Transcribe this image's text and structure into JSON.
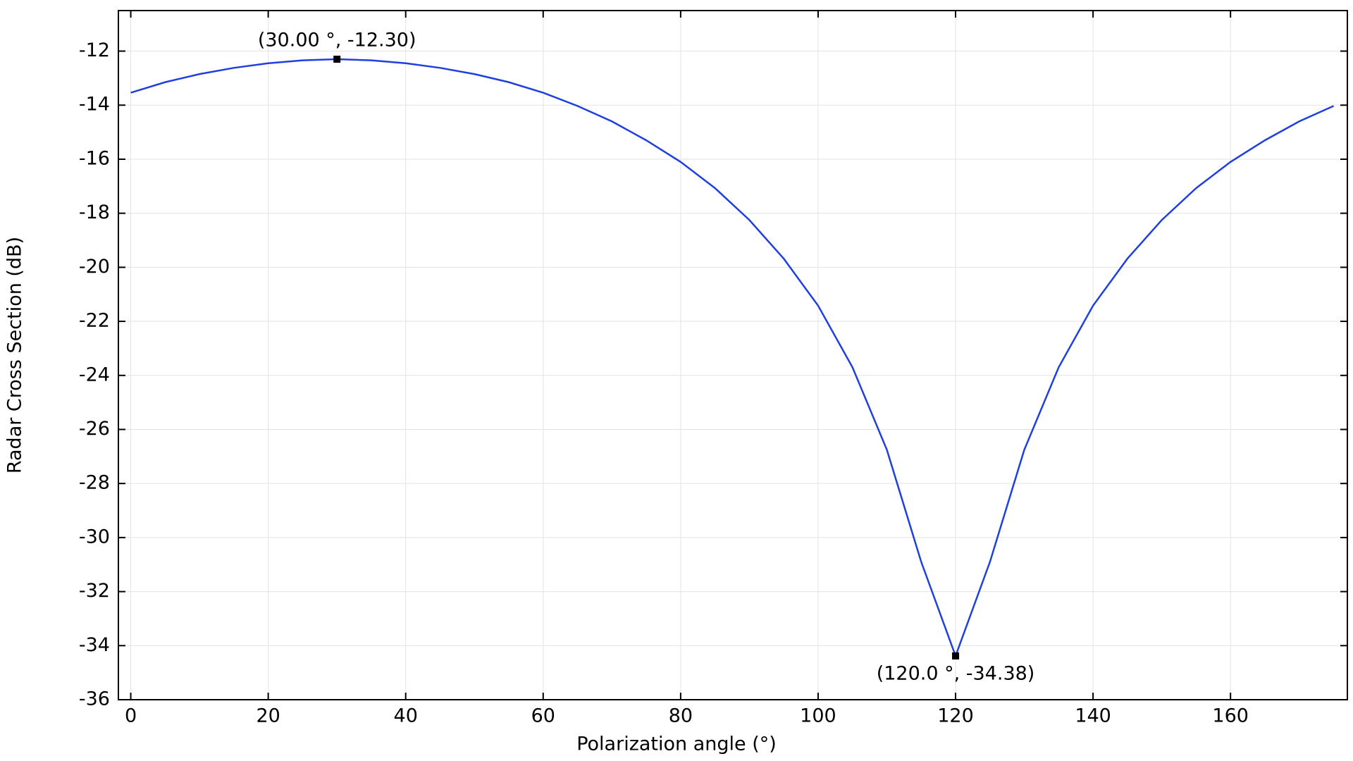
{
  "chart_data": {
    "type": "line",
    "x_label": "Polarization angle (°)",
    "y_label": "Radar Cross Section (dB)",
    "x": [
      0,
      5,
      10,
      15,
      20,
      25,
      30,
      35,
      40,
      45,
      50,
      55,
      60,
      65,
      70,
      75,
      80,
      85,
      90,
      95,
      100,
      105,
      110,
      115,
      120,
      125,
      130,
      135,
      140,
      145,
      150,
      155,
      160,
      165,
      170,
      175
    ],
    "series": [
      {
        "color": "#1f3fe0",
        "values": [
          -13.54,
          -13.15,
          -12.85,
          -12.62,
          -12.45,
          -12.34,
          -12.3,
          -12.34,
          -12.45,
          -12.62,
          -12.85,
          -13.15,
          -13.54,
          -14.03,
          -14.6,
          -15.3,
          -16.1,
          -17.07,
          -18.25,
          -19.68,
          -21.42,
          -23.7,
          -26.75,
          -30.9,
          -34.38,
          -30.9,
          -26.75,
          -23.7,
          -21.42,
          -19.68,
          -18.25,
          -17.07,
          -16.1,
          -15.3,
          -14.6,
          -14.03
        ]
      }
    ],
    "annotations": [
      {
        "x": 30,
        "y": -12.3,
        "label": "(30.00 °, -12.30)"
      },
      {
        "x": 120,
        "y": -34.38,
        "label": "(120.0 °, -34.38)"
      }
    ],
    "xlim": [
      -1.8,
      177
    ],
    "ylim": [
      -36,
      -10.5
    ],
    "xticks": [
      0,
      20,
      40,
      60,
      80,
      100,
      120,
      140,
      160
    ],
    "yticks": [
      -36,
      -34,
      -32,
      -30,
      -28,
      -26,
      -24,
      -22,
      -20,
      -18,
      -16,
      -14,
      -12
    ],
    "grid": true
  }
}
